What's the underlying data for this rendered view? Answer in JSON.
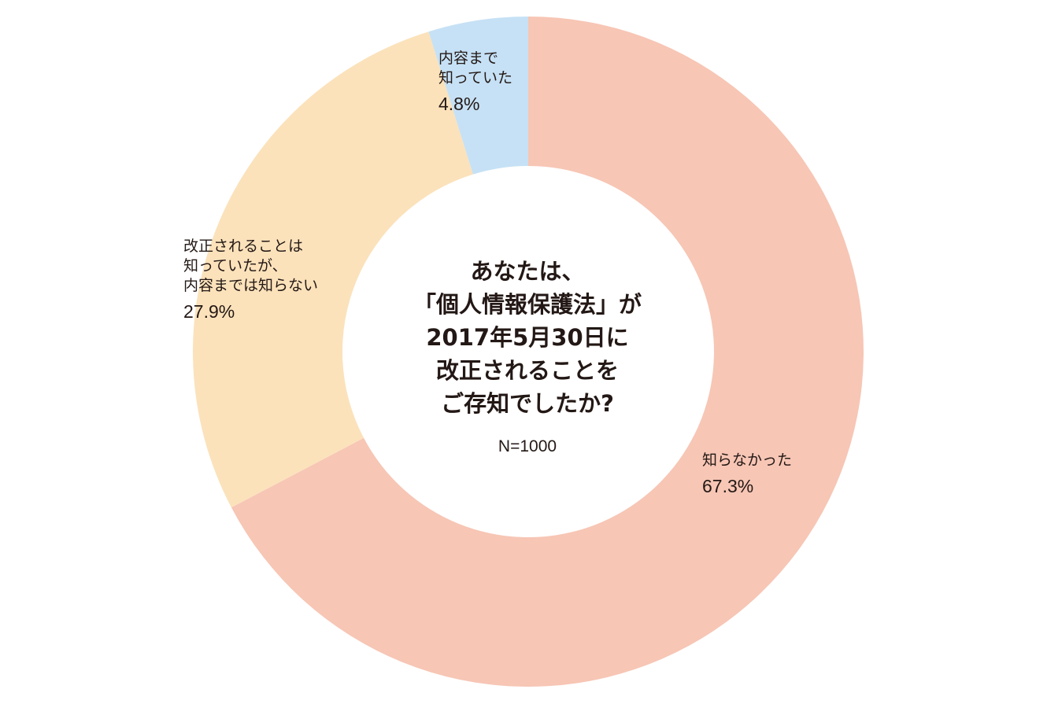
{
  "chart_data": {
    "type": "pie",
    "variant": "donut",
    "title": [
      "あなたは、",
      "「個人情報保護法」が",
      "2017年5月30日に",
      "改正されることを",
      "ご存知でしたか?"
    ],
    "sample_size": "N=1000",
    "slices": [
      {
        "label": [
          "知らなかった"
        ],
        "value": 67.3,
        "value_label": "67.3%",
        "color": "#f7c6b5"
      },
      {
        "label": [
          "改正されることは",
          "知っていたが、",
          "内容までは知らない"
        ],
        "value": 27.9,
        "value_label": "27.9%",
        "color": "#fbe2bb"
      },
      {
        "label": [
          "内容まで",
          "知っていた"
        ],
        "value": 4.8,
        "value_label": "4.8%",
        "color": "#c6e1f5"
      }
    ]
  }
}
